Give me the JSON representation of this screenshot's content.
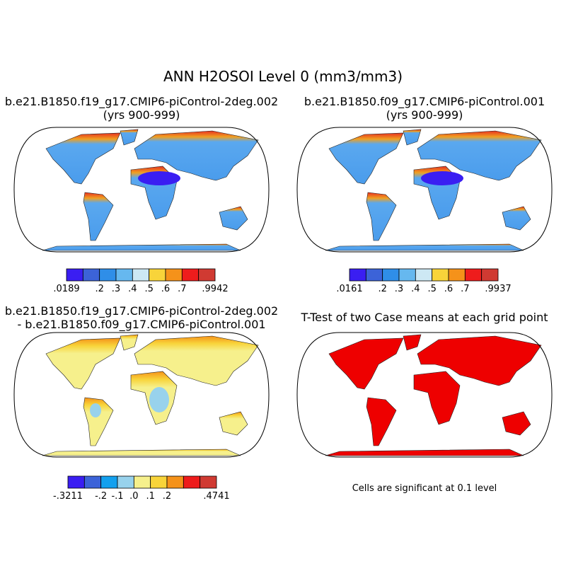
{
  "title": "ANN H2OSOI Level 0 (mm3/mm3)",
  "panels": [
    {
      "title_lines": [
        "b.e21.B1850.f19_g17.CMIP6-piControl-2deg.002",
        "(yrs 900-999)"
      ],
      "colorbar": {
        "colors": [
          "#3a1ef2",
          "#3c63d8",
          "#2f8ee8",
          "#66b8ef",
          "#cde8f4",
          "#f8d43a",
          "#f5921a",
          "#ee1c1c",
          "#d03a32"
        ],
        "labels": [
          ".0189",
          null,
          ".2",
          ".3",
          ".4",
          ".5",
          ".6",
          ".7",
          null,
          ".9942"
        ]
      }
    },
    {
      "title_lines": [
        "b.e21.B1850.f09_g17.CMIP6-piControl.001",
        "(yrs 900-999)"
      ],
      "colorbar": {
        "colors": [
          "#3a1ef2",
          "#3c63d8",
          "#2f8ee8",
          "#66b8ef",
          "#cde8f4",
          "#f8d43a",
          "#f5921a",
          "#ee1c1c",
          "#d03a32"
        ],
        "labels": [
          ".0161",
          null,
          ".2",
          ".3",
          ".4",
          ".5",
          ".6",
          ".7",
          null,
          ".9937"
        ]
      }
    },
    {
      "title_lines": [
        "b.e21.B1850.f19_g17.CMIP6-piControl-2deg.002",
        "- b.e21.B1850.f09_g17.CMIP6-piControl.001"
      ],
      "colorbar": {
        "colors": [
          "#3a1ef2",
          "#3c63d8",
          "#13a0ee",
          "#98d2ec",
          "#f6f08c",
          "#f8d43a",
          "#f5921a",
          "#ee1c1c",
          "#d03a32"
        ],
        "labels": [
          "-.3211",
          null,
          "-.2",
          "-.1",
          ".0",
          ".1",
          ".2",
          null,
          null,
          ".4741"
        ]
      }
    },
    {
      "title_lines": [
        "T-Test of two Case means at each grid point"
      ],
      "note": "Cells are significant at 0.1 level"
    }
  ]
}
